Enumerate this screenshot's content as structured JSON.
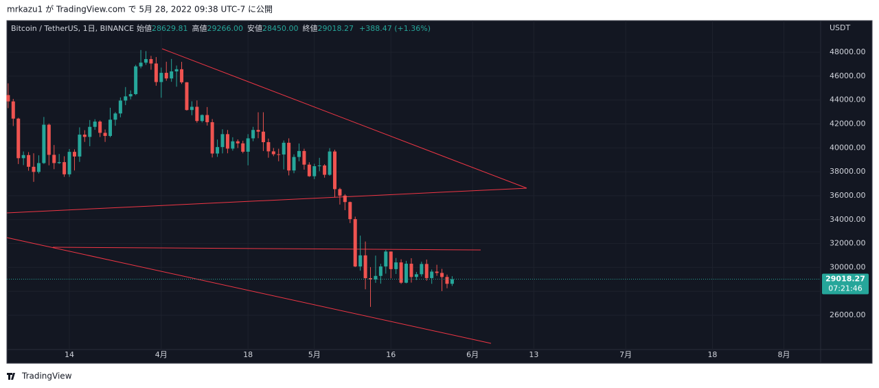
{
  "header": {
    "publisher": "mrkazu1 が TradingView.com で 5月 28, 2022 09:38 UTC-7 に公開"
  },
  "chart_data": {
    "type": "candlestick",
    "title": "Bitcoin / TetherUS, 1日, BINANCE",
    "ohlc_legend": [
      {
        "label": "始値",
        "value": "28629.81"
      },
      {
        "label": "高値",
        "value": "29266.00"
      },
      {
        "label": "安値",
        "value": "28450.00"
      },
      {
        "label": "終値",
        "value": "29018.27"
      }
    ],
    "change": "+388.47 (+1.36%)",
    "y_unit": "USDT",
    "up_color": "#26a69a",
    "down_color": "#ef5350",
    "x": [
      61,
      62,
      63,
      64,
      65,
      66,
      67,
      68,
      69,
      70,
      71,
      72,
      73,
      74,
      75,
      76,
      77,
      78,
      79,
      80,
      81,
      82,
      83,
      84,
      85,
      86,
      87,
      88,
      89,
      90,
      91,
      92,
      93,
      94,
      95,
      96,
      97,
      98,
      99,
      100,
      101,
      102,
      103,
      104,
      105,
      106,
      107,
      108,
      109,
      110,
      111,
      112,
      113,
      114,
      115,
      116,
      117,
      118,
      119,
      120,
      121,
      122,
      123,
      124,
      125,
      126,
      127,
      128,
      129,
      130,
      131,
      132,
      133,
      134,
      135,
      136,
      137,
      138,
      139,
      140,
      141,
      142,
      143,
      144,
      145,
      146,
      147,
      148
    ],
    "open": [
      44420,
      43890,
      42450,
      39140,
      39400,
      38420,
      37990,
      38730,
      41940,
      39420,
      38730,
      38810,
      37790,
      39670,
      39280,
      41110,
      40920,
      41760,
      42200,
      41260,
      41000,
      42360,
      42880,
      43960,
      44310,
      44500,
      46820,
      47130,
      47430,
      47060,
      45510,
      46280,
      45810,
      46400,
      46580,
      45490,
      43170,
      43440,
      42250,
      42750,
      42150,
      39530,
      40070,
      41150,
      39940,
      40550,
      40380,
      39680,
      40800,
      41500,
      41360,
      40480,
      39710,
      39470,
      39450,
      40430,
      38110,
      39240,
      39740,
      38600,
      37630,
      38470,
      38530,
      37750,
      39700,
      36550,
      36010,
      35470,
      34040,
      30080,
      31010,
      29100,
      28990,
      29290,
      30080,
      31330,
      29860,
      30420,
      28720,
      30310,
      29200,
      29430,
      30290,
      29110,
      29650,
      29540,
      29200,
      28629.81
    ],
    "high": [
      45400,
      44100,
      42520,
      39700,
      39650,
      39550,
      39380,
      42590,
      42040,
      40240,
      39490,
      39300,
      39910,
      39880,
      41720,
      41480,
      42330,
      42400,
      42300,
      41540,
      43360,
      43000,
      44220,
      45090,
      44810,
      46950,
      48190,
      48100,
      47700,
      47600,
      46720,
      47210,
      47440,
      46890,
      47200,
      45510,
      43900,
      43970,
      42800,
      43420,
      42410,
      40700,
      41560,
      41500,
      40890,
      40710,
      40600,
      41150,
      41760,
      42980,
      42980,
      40780,
      39990,
      39930,
      40620,
      40800,
      39460,
      40370,
      39930,
      38800,
      38670,
      39170,
      38640,
      39980,
      39850,
      36660,
      36130,
      35510,
      34250,
      32660,
      32170,
      30030,
      30990,
      30300,
      31460,
      31330,
      30790,
      30680,
      30550,
      30770,
      29620,
      30480,
      30660,
      29830,
      30220,
      29880,
      29400,
      29266
    ],
    "low": [
      43330,
      41830,
      38650,
      38560,
      38090,
      37160,
      37860,
      38660,
      38540,
      38220,
      38660,
      37580,
      37580,
      38110,
      38830,
      40500,
      40140,
      41510,
      40910,
      40500,
      40890,
      41850,
      42560,
      43580,
      44060,
      44420,
      46660,
      46950,
      46540,
      45200,
      44200,
      45620,
      45530,
      45120,
      45350,
      43120,
      42730,
      42110,
      42130,
      41870,
      39200,
      39250,
      39540,
      39550,
      39770,
      39990,
      39550,
      38540,
      40560,
      40810,
      39740,
      39180,
      39310,
      38880,
      38200,
      37700,
      37880,
      38880,
      38180,
      37580,
      37390,
      38050,
      37510,
      37670,
      35860,
      35260,
      34790,
      33710,
      30030,
      29730,
      28170,
      26700,
      28710,
      28640,
      29480,
      29090,
      29450,
      28620,
      28670,
      28730,
      28950,
      29240,
      28890,
      28630,
      29300,
      28020,
      28260,
      28450
    ],
    "close": [
      43890,
      42450,
      39140,
      39400,
      38420,
      37990,
      38730,
      41940,
      39420,
      38730,
      38810,
      37790,
      39670,
      39280,
      41110,
      40920,
      41760,
      42200,
      41260,
      41000,
      42360,
      42880,
      43960,
      44310,
      44500,
      46820,
      47130,
      47430,
      47060,
      45510,
      46280,
      45810,
      46400,
      46580,
      45490,
      43170,
      43440,
      42250,
      42750,
      42150,
      39530,
      40070,
      41150,
      39940,
      40550,
      40380,
      39680,
      40800,
      41500,
      41360,
      40480,
      39710,
      39470,
      39450,
      40430,
      38110,
      39240,
      39740,
      38600,
      37630,
      38470,
      38530,
      37750,
      39700,
      36550,
      36010,
      35470,
      34040,
      30080,
      31010,
      29100,
      28990,
      29290,
      30080,
      31330,
      29860,
      30420,
      28720,
      30310,
      29200,
      29430,
      30290,
      29110,
      29650,
      29540,
      29200,
      28629.81,
      29018.27
    ],
    "xlim": [
      60.75,
      220.2
    ],
    "xticks": [
      {
        "value": 73,
        "label": "14"
      },
      {
        "value": 91,
        "label": "4月"
      },
      {
        "value": 108,
        "label": "18"
      },
      {
        "value": 121,
        "label": "5月"
      },
      {
        "value": 136,
        "label": "16"
      },
      {
        "value": 152,
        "label": "6月"
      },
      {
        "value": 164,
        "label": "13"
      },
      {
        "value": 182,
        "label": "7月"
      },
      {
        "value": 199,
        "label": "18"
      },
      {
        "value": 213,
        "label": "8月"
      }
    ],
    "ylim": [
      23130,
      50650
    ],
    "yticks": [
      {
        "value": 26000,
        "label": "26000.00"
      },
      {
        "value": 28000,
        "label": "28000.00"
      },
      {
        "value": 30000,
        "label": "30000.00"
      },
      {
        "value": 32000,
        "label": "32000.00"
      },
      {
        "value": 34000,
        "label": "34000.00"
      },
      {
        "value": 36000,
        "label": "36000.00"
      },
      {
        "value": 38000,
        "label": "38000.00"
      },
      {
        "value": 40000,
        "label": "40000.00"
      },
      {
        "value": 42000,
        "label": "42000.00"
      },
      {
        "value": 44000,
        "label": "44000.00"
      },
      {
        "value": 46000,
        "label": "46000.00"
      },
      {
        "value": 48000,
        "label": "48000.00"
      }
    ],
    "grid": true,
    "last_price": {
      "value": 29018.27,
      "label": "29018.27"
    },
    "countdown": "07:21:46"
  },
  "footer": {
    "brand": "TradingView"
  }
}
